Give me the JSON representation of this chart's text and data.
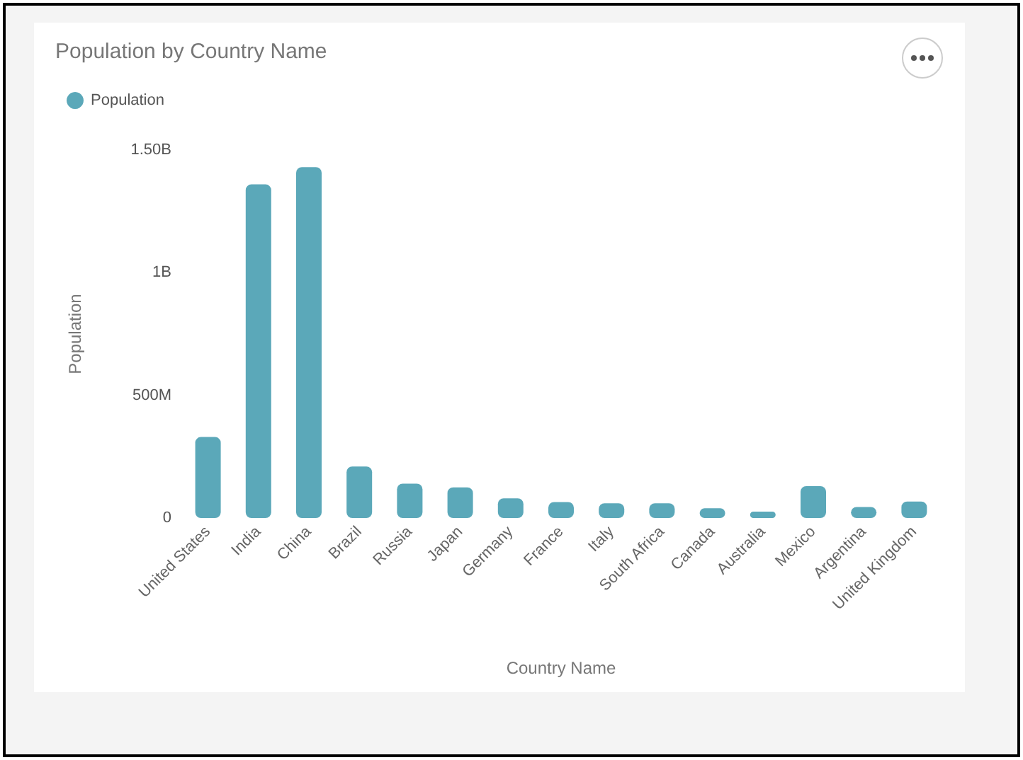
{
  "chart_data": {
    "type": "bar",
    "title": "Population by Country Name",
    "xlabel": "Country Name",
    "ylabel": "Population",
    "categories": [
      "United States",
      "India",
      "China",
      "Brazil",
      "Russia",
      "Japan",
      "Germany",
      "France",
      "Italy",
      "South Africa",
      "Canada",
      "Australia",
      "Mexico",
      "Argentina",
      "United Kingdom"
    ],
    "series": [
      {
        "name": "Population",
        "color": "#5ba8b9",
        "values": [
          330000000,
          1360000000,
          1430000000,
          210000000,
          140000000,
          125000000,
          80000000,
          65000000,
          60000000,
          60000000,
          40000000,
          26000000,
          130000000,
          45000000,
          67000000
        ]
      }
    ],
    "ylim": [
      0,
      1500000000
    ],
    "yticks": [
      0,
      {
        "value": 500000000,
        "label": "500M"
      },
      {
        "value": 1000000000,
        "label": "1B"
      },
      {
        "value": 1500000000,
        "label": "1.50B"
      }
    ],
    "grid": false,
    "legend": "top left"
  }
}
